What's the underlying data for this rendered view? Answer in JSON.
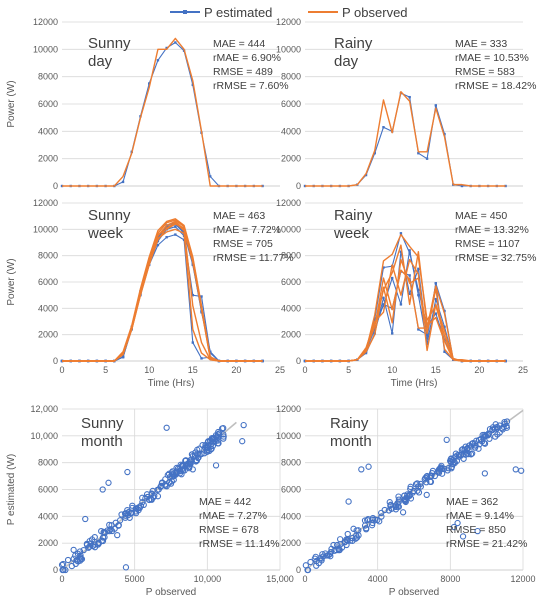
{
  "legend": [
    {
      "label": "P estimated",
      "color": "#4472c4"
    },
    {
      "label": "P observed",
      "color": "#ed7d31"
    }
  ],
  "colors": {
    "estimated": "#4472c4",
    "observed": "#ed7d31",
    "reference_line": "#bfbfbf"
  },
  "chart_data": [
    {
      "type": "line",
      "panel_label": [
        "Sunny",
        "day"
      ],
      "stats": [
        "MAE = 444",
        "rMAE = 6.90%",
        "RMSE = 489",
        "rRMSE = 7.60%"
      ],
      "ylabel": "Power (W)",
      "xlim": [
        0,
        25
      ],
      "ylim": [
        0,
        12000
      ],
      "yticks": [
        "0",
        "2000",
        "4000",
        "6000",
        "8000",
        "10000",
        "12000"
      ],
      "x": [
        0,
        1,
        2,
        3,
        4,
        5,
        6,
        7,
        8,
        9,
        10,
        11,
        12,
        13,
        14,
        15,
        16,
        17,
        18,
        19,
        20,
        21,
        22,
        23
      ],
      "series": [
        {
          "name": "P estimated",
          "values": [
            0,
            0,
            0,
            0,
            0,
            0,
            0,
            300,
            2500,
            5100,
            7500,
            9200,
            10100,
            10500,
            9900,
            7400,
            3900,
            700,
            0,
            0,
            0,
            0,
            0,
            0
          ]
        },
        {
          "name": "P observed",
          "values": [
            0,
            0,
            0,
            0,
            0,
            0,
            0,
            700,
            2400,
            5000,
            7200,
            10000,
            10000,
            10800,
            10000,
            7700,
            4000,
            0,
            0,
            0,
            0,
            0,
            0,
            0
          ]
        }
      ]
    },
    {
      "type": "line",
      "panel_label": [
        "Rainy",
        "day"
      ],
      "stats": [
        "MAE = 333",
        "rMAE = 10.53%",
        "RMSE = 583",
        "rRMSE = 18.42%"
      ],
      "xlim": [
        0,
        25
      ],
      "ylim": [
        0,
        12000
      ],
      "yticks": [
        "0",
        "2000",
        "4000",
        "6000",
        "8000",
        "10000",
        "12000"
      ],
      "x": [
        0,
        1,
        2,
        3,
        4,
        5,
        6,
        7,
        8,
        9,
        10,
        11,
        12,
        13,
        14,
        15,
        16,
        17,
        18,
        19,
        20,
        21,
        22,
        23
      ],
      "series": [
        {
          "name": "P estimated",
          "values": [
            0,
            0,
            0,
            0,
            0,
            0,
            100,
            800,
            2400,
            4300,
            4000,
            6800,
            6500,
            2400,
            2000,
            5900,
            3800,
            100,
            0,
            0,
            0,
            0,
            0,
            0
          ]
        },
        {
          "name": "P observed",
          "values": [
            0,
            0,
            0,
            0,
            0,
            0,
            100,
            900,
            2600,
            6300,
            3900,
            6900,
            6200,
            2500,
            2500,
            5700,
            3600,
            100,
            100,
            0,
            0,
            0,
            0,
            0
          ]
        }
      ]
    },
    {
      "type": "line",
      "panel_label": [
        "Sunny",
        "week"
      ],
      "stats": [
        "MAE = 463",
        "rMAE = 7.72%",
        "RMSE = 705",
        "rRMSE = 11.77%"
      ],
      "ylabel": "Power (W)",
      "xlabel": "Time (Hrs)",
      "xlim": [
        0,
        25
      ],
      "ylim": [
        0,
        12000
      ],
      "xticks": [
        "0",
        "5",
        "10",
        "15",
        "20",
        "25"
      ],
      "yticks": [
        "0",
        "2000",
        "4000",
        "6000",
        "8000",
        "10000",
        "12000"
      ],
      "x": [
        0,
        1,
        2,
        3,
        4,
        5,
        6,
        7,
        8,
        9,
        10,
        11,
        12,
        13,
        14,
        15,
        16,
        17,
        18,
        19,
        20,
        21,
        22,
        23
      ],
      "series": [
        {
          "name": "P estimated",
          "values": [
            0,
            0,
            0,
            0,
            0,
            0,
            0,
            300,
            2500,
            5200,
            7600,
            9300,
            10200,
            10400,
            9700,
            7300,
            3800,
            700,
            0,
            0,
            0,
            0,
            0,
            0
          ]
        },
        {
          "name": "P estimated",
          "values": [
            0,
            0,
            0,
            0,
            0,
            0,
            0,
            300,
            2400,
            5100,
            7400,
            9100,
            10000,
            10200,
            9500,
            5000,
            4900,
            600,
            0,
            0,
            0,
            0,
            0,
            0
          ]
        },
        {
          "name": "P estimated",
          "values": [
            0,
            0,
            0,
            0,
            0,
            0,
            0,
            300,
            2500,
            5000,
            7300,
            8800,
            9400,
            9600,
            9200,
            1400,
            200,
            300,
            0,
            0,
            0,
            0,
            0,
            0
          ]
        },
        {
          "name": "P estimated",
          "values": [
            0,
            0,
            0,
            0,
            0,
            0,
            0,
            300,
            2600,
            5300,
            7700,
            9400,
            10300,
            10500,
            9800,
            7400,
            3700,
            700,
            0,
            0,
            0,
            0,
            0,
            0
          ]
        },
        {
          "name": "P observed",
          "values": [
            0,
            0,
            0,
            0,
            0,
            0,
            0,
            600,
            2600,
            5400,
            7800,
            9700,
            10500,
            10700,
            10200,
            7800,
            4100,
            300,
            0,
            0,
            0,
            0,
            0,
            0
          ]
        },
        {
          "name": "P observed",
          "values": [
            0,
            0,
            0,
            0,
            0,
            0,
            0,
            500,
            2500,
            5300,
            7500,
            9500,
            10300,
            10600,
            10000,
            7600,
            4000,
            200,
            0,
            0,
            0,
            0,
            0,
            0
          ]
        },
        {
          "name": "P observed",
          "values": [
            0,
            0,
            0,
            0,
            0,
            0,
            0,
            500,
            2400,
            5100,
            7400,
            9200,
            10100,
            10500,
            9900,
            7500,
            3900,
            200,
            0,
            0,
            0,
            0,
            0,
            0
          ]
        },
        {
          "name": "P observed",
          "values": [
            0,
            0,
            0,
            0,
            0,
            0,
            0,
            700,
            2700,
            5500,
            7900,
            9900,
            10600,
            10800,
            10300,
            7900,
            4200,
            300,
            0,
            0,
            0,
            0,
            0,
            0
          ]
        },
        {
          "name": "P observed",
          "values": [
            0,
            0,
            0,
            0,
            0,
            0,
            0,
            600,
            2500,
            5200,
            7600,
            9600,
            10000,
            10400,
            10100,
            4200,
            1400,
            100,
            0,
            0,
            0,
            0,
            0,
            0
          ]
        },
        {
          "name": "P observed",
          "values": [
            0,
            0,
            0,
            0,
            0,
            0,
            0,
            500,
            2400,
            5000,
            7300,
            9300,
            9800,
            10000,
            9700,
            2400,
            600,
            100,
            0,
            0,
            0,
            0,
            0,
            0
          ]
        }
      ]
    },
    {
      "type": "line",
      "panel_label": [
        "Rainy",
        "week"
      ],
      "stats": [
        "MAE = 450",
        "rMAE = 13.32%",
        "RMSE = 1107",
        "rRMSE = 32.75%"
      ],
      "xlabel": "Time (Hrs)",
      "xlim": [
        0,
        25
      ],
      "ylim": [
        0,
        12000
      ],
      "xticks": [
        "0",
        "5",
        "10",
        "15",
        "20",
        "25"
      ],
      "yticks": [
        "0",
        "2000",
        "4000",
        "6000",
        "8000",
        "10000",
        "12000"
      ],
      "x": [
        0,
        1,
        2,
        3,
        4,
        5,
        6,
        7,
        8,
        9,
        10,
        11,
        12,
        13,
        14,
        15,
        16,
        17,
        18,
        19,
        20,
        21,
        22,
        23
      ],
      "series": [
        {
          "name": "P estimated",
          "values": [
            0,
            0,
            0,
            0,
            0,
            0,
            100,
            800,
            2400,
            4300,
            4000,
            6800,
            6500,
            2400,
            2000,
            5900,
            3800,
            100,
            0,
            0,
            0,
            0,
            0,
            0
          ]
        },
        {
          "name": "P estimated",
          "values": [
            0,
            0,
            0,
            0,
            0,
            0,
            100,
            700,
            3200,
            7100,
            7200,
            9700,
            8200,
            5400,
            2600,
            3600,
            1600,
            100,
            0,
            0,
            0,
            0,
            0,
            0
          ]
        },
        {
          "name": "P estimated",
          "values": [
            0,
            0,
            0,
            0,
            0,
            0,
            100,
            600,
            2100,
            4800,
            2100,
            8300,
            5100,
            7000,
            1700,
            5900,
            700,
            100,
            0,
            0,
            0,
            0,
            0,
            0
          ]
        },
        {
          "name": "P estimated",
          "values": [
            0,
            0,
            0,
            0,
            0,
            0,
            100,
            900,
            2900,
            4200,
            6300,
            4300,
            8400,
            5000,
            1300,
            4700,
            2600,
            100,
            0,
            0,
            0,
            0,
            0,
            0
          ]
        },
        {
          "name": "P observed",
          "values": [
            0,
            0,
            0,
            0,
            0,
            0,
            100,
            900,
            2600,
            6300,
            3900,
            6900,
            6200,
            2500,
            2500,
            5700,
            3600,
            100,
            100,
            0,
            0,
            0,
            0,
            0
          ]
        },
        {
          "name": "P observed",
          "values": [
            0,
            0,
            0,
            0,
            0,
            0,
            100,
            800,
            3500,
            7600,
            8100,
            9600,
            8700,
            7900,
            3100,
            4200,
            1900,
            200,
            0,
            0,
            0,
            0,
            0,
            0
          ]
        },
        {
          "name": "P observed",
          "values": [
            0,
            0,
            0,
            0,
            0,
            0,
            100,
            700,
            2000,
            5600,
            2900,
            7700,
            5900,
            6300,
            2100,
            5500,
            900,
            100,
            0,
            0,
            0,
            0,
            0,
            0
          ]
        },
        {
          "name": "P observed",
          "values": [
            0,
            0,
            0,
            0,
            0,
            0,
            100,
            1000,
            3000,
            3700,
            7300,
            5000,
            7700,
            6600,
            800,
            4300,
            2300,
            100,
            0,
            0,
            0,
            0,
            0,
            0
          ]
        },
        {
          "name": "P observed",
          "values": [
            0,
            0,
            0,
            0,
            0,
            0,
            100,
            800,
            2800,
            5400,
            6700,
            8800,
            4300,
            8300,
            2700,
            3300,
            1500,
            100,
            0,
            0,
            0,
            0,
            0,
            0
          ]
        }
      ]
    },
    {
      "type": "scatter",
      "panel_label": [
        "Sunny",
        "month"
      ],
      "stats": [
        "MAE = 442",
        "rMAE = 7.27%",
        "RMSE = 678",
        "rRMSE = 11.14%"
      ],
      "ylabel": "P estimated (W)",
      "xlabel": "P observed",
      "xlim": [
        0,
        15000
      ],
      "ylim": [
        0,
        12000
      ],
      "xticks": [
        "0",
        "5000",
        "10,000",
        "15,000"
      ],
      "yticks": [
        "0",
        "2000",
        "4000",
        "6000",
        "8000",
        "10,000",
        "12,000"
      ],
      "reference_line": [
        [
          0,
          0
        ],
        [
          12000,
          11000
        ]
      ],
      "outliers": [
        [
          4500,
          7300
        ],
        [
          2800,
          6000
        ],
        [
          3200,
          6500
        ],
        [
          7200,
          10600
        ],
        [
          12400,
          9600
        ],
        [
          12500,
          10800
        ],
        [
          4400,
          200
        ],
        [
          1600,
          3800
        ],
        [
          6600,
          5500
        ],
        [
          9000,
          7500
        ],
        [
          10600,
          7800
        ],
        [
          3800,
          2600
        ],
        [
          800,
          1500
        ]
      ]
    },
    {
      "type": "scatter",
      "panel_label": [
        "Rainy",
        "month"
      ],
      "stats": [
        "MAE = 362",
        "rMAE = 9.14%",
        "RMSE = 850",
        "rRMSE = 21.42%"
      ],
      "xlabel": "P observed",
      "xlim": [
        0,
        12000
      ],
      "ylim": [
        0,
        12000
      ],
      "xticks": [
        "0",
        "4000",
        "8000",
        "12000"
      ],
      "yticks": [
        "0",
        "2000",
        "4000",
        "6000",
        "8000",
        "10000",
        "12000"
      ],
      "reference_line": [
        [
          0,
          0
        ],
        [
          12000,
          11900
        ]
      ],
      "outliers": [
        [
          3100,
          7500
        ],
        [
          3500,
          7700
        ],
        [
          7800,
          9700
        ],
        [
          11600,
          7500
        ],
        [
          11900,
          7400
        ],
        [
          9900,
          7200
        ],
        [
          2400,
          5100
        ],
        [
          8200,
          3200
        ],
        [
          8700,
          2500
        ],
        [
          8400,
          3500
        ],
        [
          9500,
          2900
        ],
        [
          6700,
          5600
        ],
        [
          5400,
          4300
        ]
      ]
    }
  ]
}
